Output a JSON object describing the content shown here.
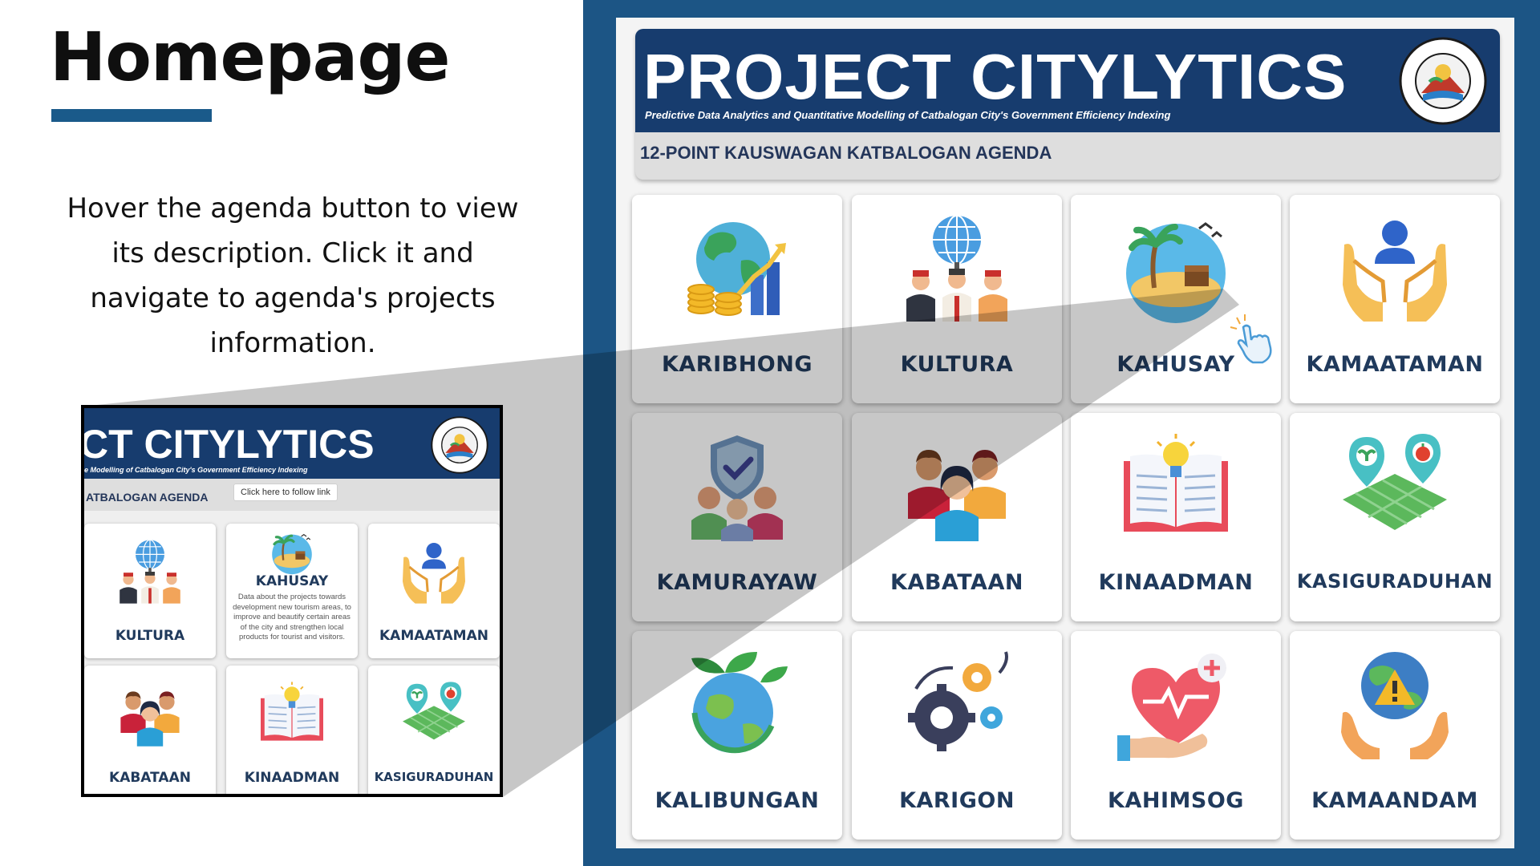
{
  "page": {
    "title": "Homepage",
    "instruction": "Hover the agenda button to view its description. Click it and navigate to agenda's projects information."
  },
  "app": {
    "title": "PROJECT CITYLYTICS",
    "subtitle": "Predictive Data Analytics and Quantitative Modelling of Catbalogan City's Government Efficiency Indexing",
    "agenda_heading": "12-POINT KAUSWAGAN KATBALOGAN AGENDA",
    "seal": {
      "text_top": "CITY OF CATBALOGAN",
      "text_bottom": "SAMAR",
      "year_left": "1616",
      "year_right": "2007"
    },
    "tiles": [
      {
        "label": "KARIBHONG",
        "icon": "economy-globe-coins-icon"
      },
      {
        "label": "KULTURA",
        "icon": "culture-people-globe-icon"
      },
      {
        "label": "KAHUSAY",
        "icon": "tourism-island-icon"
      },
      {
        "label": "KAMAATAMAN",
        "icon": "care-hands-person-icon"
      },
      {
        "label": "KAMURAYAW",
        "icon": "peace-shield-people-icon"
      },
      {
        "label": "KABATAAN",
        "icon": "youth-group-icon"
      },
      {
        "label": "KINAADMAN",
        "icon": "education-book-bulb-icon"
      },
      {
        "label": "KASIGURADUHAN",
        "icon": "food-security-map-icon"
      },
      {
        "label": "KALIBUNGAN",
        "icon": "environment-earth-leaves-icon"
      },
      {
        "label": "KARIGON",
        "icon": "infrastructure-gears-icon"
      },
      {
        "label": "KAHIMSOG",
        "icon": "health-heart-hand-icon"
      },
      {
        "label": "KAMAANDAM",
        "icon": "disaster-earth-warning-icon"
      }
    ],
    "colors": {
      "panel": "#1c5585",
      "banner": "#173c6e",
      "label": "#203a5c",
      "accent": "#1a5a8a"
    }
  },
  "inset": {
    "title": "CT CITYLYTICS",
    "subtitle": "e Modelling of Catbalogan City's Government Efficiency Indexing",
    "agenda_heading": "ATBALOGAN AGENDA",
    "tooltip": "Click here to follow link",
    "seal": {
      "text_top": "CITY OF CATBALOGAN",
      "text_bottom": "SAMAR"
    },
    "tiles": [
      {
        "label": "KULTURA",
        "icon": "culture-people-globe-icon"
      },
      {
        "label": "KAHUSAY",
        "icon": "tourism-island-icon",
        "description": "Data about the projects towards development new tourism areas, to improve and beautify certain areas of the city and strengthen local products for tourist and visitors."
      },
      {
        "label": "KAMAATAMAN",
        "icon": "care-hands-person-icon"
      },
      {
        "label": "KABATAAN",
        "icon": "youth-group-icon"
      },
      {
        "label": "KINAADMAN",
        "icon": "education-book-bulb-icon"
      },
      {
        "label": "KASIGURADUHAN",
        "icon": "food-security-map-icon"
      }
    ]
  }
}
